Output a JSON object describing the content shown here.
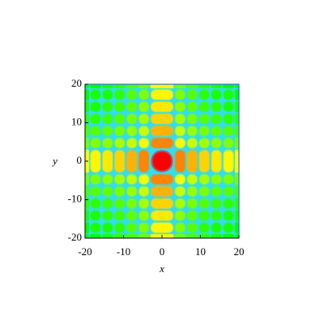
{
  "chart_data": {
    "type": "heatmap",
    "xlabel": "x",
    "ylabel": "y",
    "xlim": [
      -20,
      20
    ],
    "ylim": [
      -20,
      20
    ],
    "xticks": [
      -20,
      -10,
      0,
      10,
      20
    ],
    "yticks": [
      -20,
      -10,
      0,
      10,
      20
    ],
    "x_edges": [
      -20,
      -18.85,
      -15.71,
      -12.57,
      -9.42,
      -6.28,
      -3.14,
      3.14,
      6.28,
      9.42,
      12.57,
      15.71,
      18.85,
      20
    ],
    "y_edges": [
      -20,
      -18.85,
      -15.71,
      -12.57,
      -9.42,
      -6.28,
      -3.14,
      3.14,
      6.28,
      9.42,
      12.57,
      15.71,
      18.85,
      20
    ],
    "zlim": [
      0.003,
      1
    ],
    "log_color": true,
    "background": "#33ddee",
    "values": [
      [
        0.003,
        0.003,
        0.004,
        0.005,
        0.007,
        0.011,
        0.05,
        0.011,
        0.007,
        0.005,
        0.004,
        0.003,
        0.003
      ],
      [
        0.003,
        0.004,
        0.004,
        0.005,
        0.008,
        0.013,
        0.06,
        0.013,
        0.008,
        0.005,
        0.004,
        0.004,
        0.003
      ],
      [
        0.004,
        0.004,
        0.005,
        0.006,
        0.009,
        0.015,
        0.07,
        0.015,
        0.009,
        0.006,
        0.005,
        0.004,
        0.004
      ],
      [
        0.005,
        0.005,
        0.006,
        0.008,
        0.012,
        0.02,
        0.09,
        0.02,
        0.012,
        0.008,
        0.006,
        0.005,
        0.005
      ],
      [
        0.007,
        0.008,
        0.009,
        0.012,
        0.017,
        0.029,
        0.13,
        0.029,
        0.017,
        0.012,
        0.009,
        0.008,
        0.007
      ],
      [
        0.011,
        0.013,
        0.015,
        0.02,
        0.029,
        0.048,
        0.22,
        0.048,
        0.029,
        0.02,
        0.015,
        0.013,
        0.011
      ],
      [
        0.05,
        0.06,
        0.07,
        0.09,
        0.13,
        0.22,
        1,
        0.22,
        0.13,
        0.09,
        0.07,
        0.06,
        0.05
      ],
      [
        0.011,
        0.013,
        0.015,
        0.02,
        0.029,
        0.048,
        0.22,
        0.048,
        0.029,
        0.02,
        0.015,
        0.013,
        0.011
      ],
      [
        0.007,
        0.008,
        0.009,
        0.012,
        0.017,
        0.029,
        0.13,
        0.029,
        0.017,
        0.012,
        0.009,
        0.008,
        0.007
      ],
      [
        0.005,
        0.005,
        0.006,
        0.008,
        0.012,
        0.02,
        0.09,
        0.02,
        0.012,
        0.008,
        0.006,
        0.005,
        0.005
      ],
      [
        0.004,
        0.004,
        0.005,
        0.006,
        0.009,
        0.015,
        0.07,
        0.015,
        0.009,
        0.006,
        0.005,
        0.004,
        0.004
      ],
      [
        0.003,
        0.004,
        0.004,
        0.005,
        0.008,
        0.013,
        0.06,
        0.013,
        0.008,
        0.005,
        0.004,
        0.004,
        0.003
      ],
      [
        0.003,
        0.003,
        0.004,
        0.005,
        0.007,
        0.011,
        0.05,
        0.011,
        0.007,
        0.005,
        0.004,
        0.003,
        0.003
      ]
    ]
  }
}
